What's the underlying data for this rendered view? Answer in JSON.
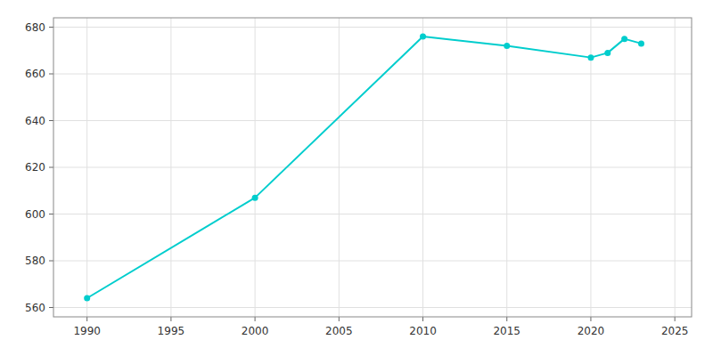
{
  "chart_data": {
    "type": "line",
    "x": [
      1990,
      2000,
      2010,
      2015,
      2020,
      2021,
      2022,
      2023
    ],
    "values": [
      564,
      607,
      676,
      672,
      667,
      669,
      675,
      673
    ],
    "color": "#00CDCD",
    "marker": "circle",
    "xlim": [
      1988,
      2026
    ],
    "ylim": [
      556,
      684
    ],
    "xticks": [
      1990,
      1995,
      2000,
      2005,
      2010,
      2015,
      2020,
      2025
    ],
    "yticks": [
      560,
      580,
      600,
      620,
      640,
      660,
      680
    ],
    "grid": true
  }
}
